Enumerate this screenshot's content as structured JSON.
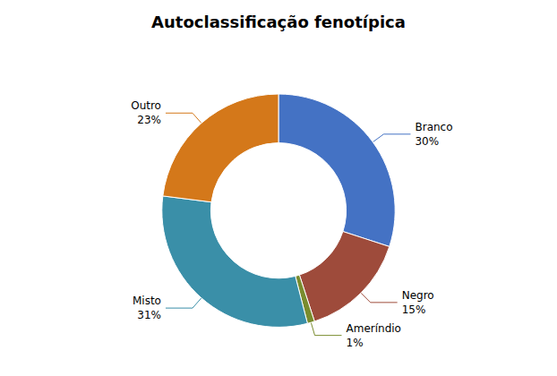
{
  "chart_data": {
    "type": "pie",
    "title": "Autoclassificação fenotípica",
    "categories": [
      "Branco",
      "Negro",
      "Ameríndio",
      "Misto",
      "Outro"
    ],
    "values": [
      30,
      15,
      1,
      31,
      23
    ],
    "value_labels": [
      "30%",
      "15%",
      "1%",
      "31%",
      "23%"
    ],
    "colors": [
      "#4472C4",
      "#9E4B3B",
      "#7A8C2E",
      "#3A8FA8",
      "#D4781A"
    ],
    "data_labels": true
  }
}
